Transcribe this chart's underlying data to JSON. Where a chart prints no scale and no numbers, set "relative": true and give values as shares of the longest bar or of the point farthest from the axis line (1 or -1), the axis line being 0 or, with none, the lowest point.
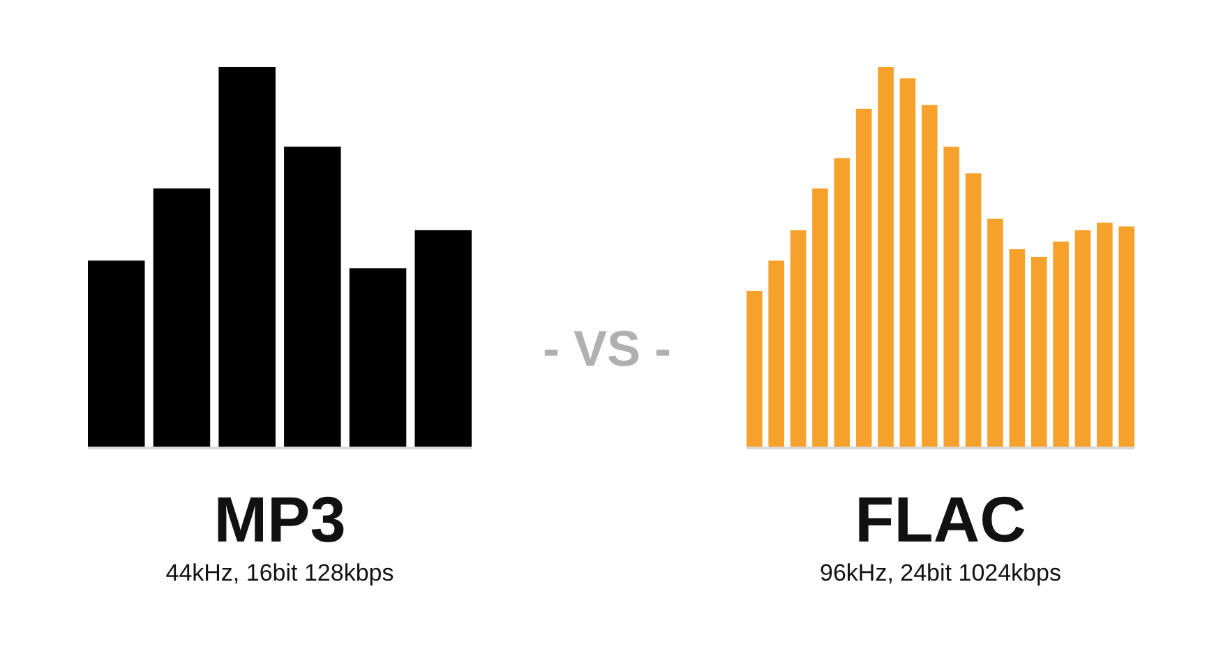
{
  "chart_data": [
    {
      "type": "bar",
      "title": "MP3",
      "subtitle": "44kHz, 16bit 128kbps",
      "relative": true,
      "categories": [
        null,
        null,
        null,
        null,
        null,
        null
      ],
      "values": [
        0.49,
        0.68,
        1,
        0.79,
        0.47,
        0.57
      ],
      "color": "#000000",
      "annotations": [
        "- VS -"
      ]
    },
    {
      "type": "bar",
      "title": "FLAC",
      "subtitle": "96kHz, 24bit 1024kbps",
      "relative": true,
      "categories": [
        null,
        null,
        null,
        null,
        null,
        null,
        null,
        null,
        null,
        null,
        null,
        null,
        null,
        null,
        null,
        null,
        null,
        null
      ],
      "values": [
        0.41,
        0.49,
        0.57,
        0.68,
        0.76,
        0.89,
        1,
        0.97,
        0.9,
        0.79,
        0.72,
        0.6,
        0.52,
        0.5,
        0.54,
        0.57,
        0.59,
        0.58
      ],
      "color": "#f7a12d"
    }
  ]
}
